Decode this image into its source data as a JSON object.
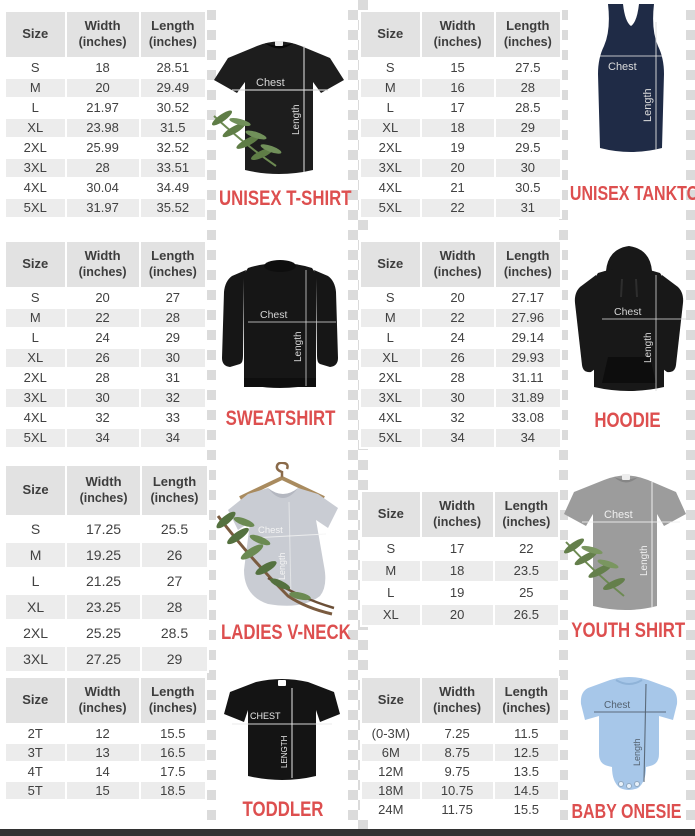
{
  "accent_color": "#dd4f4f",
  "columns": {
    "size": "Size",
    "width": "Width",
    "length": "Length",
    "unit": "(inches)"
  },
  "sections": [
    {
      "label": "UNISEX T-SHIRT",
      "chest_label": "Chest",
      "length_label": "Length",
      "garment_color": "#1d1d1d",
      "annotation_color": "#d8d8d8",
      "rows": [
        [
          "S",
          "18",
          "28.51"
        ],
        [
          "M",
          "20",
          "29.49"
        ],
        [
          "L",
          "21.97",
          "30.52"
        ],
        [
          "XL",
          "23.98",
          "31.5"
        ],
        [
          "2XL",
          "25.99",
          "32.52"
        ],
        [
          "3XL",
          "28",
          "33.51"
        ],
        [
          "4XL",
          "30.04",
          "34.49"
        ],
        [
          "5XL",
          "31.97",
          "35.52"
        ]
      ]
    },
    {
      "label": "UNISEX TANKTOP",
      "chest_label": "Chest",
      "length_label": "Length",
      "garment_color": "#1f2b46",
      "annotation_color": "#dcdcdc",
      "rows": [
        [
          "S",
          "15",
          "27.5"
        ],
        [
          "M",
          "16",
          "28"
        ],
        [
          "L",
          "17",
          "28.5"
        ],
        [
          "XL",
          "18",
          "29"
        ],
        [
          "2XL",
          "19",
          "29.5"
        ],
        [
          "3XL",
          "20",
          "30"
        ],
        [
          "4XL",
          "21",
          "30.5"
        ],
        [
          "5XL",
          "22",
          "31"
        ]
      ]
    },
    {
      "label": "SWEATSHIRT",
      "chest_label": "Chest",
      "length_label": "Length",
      "garment_color": "#161616",
      "annotation_color": "#d5d5d5",
      "rows": [
        [
          "S",
          "20",
          "27"
        ],
        [
          "M",
          "22",
          "28"
        ],
        [
          "L",
          "24",
          "29"
        ],
        [
          "XL",
          "26",
          "30"
        ],
        [
          "2XL",
          "28",
          "31"
        ],
        [
          "3XL",
          "30",
          "32"
        ],
        [
          "4XL",
          "32",
          "33"
        ],
        [
          "5XL",
          "34",
          "34"
        ]
      ]
    },
    {
      "label": "HOODIE",
      "chest_label": "Chest",
      "length_label": "Length",
      "garment_color": "#181818",
      "annotation_color": "#d5d5d5",
      "rows": [
        [
          "S",
          "20",
          "27.17"
        ],
        [
          "M",
          "22",
          "27.96"
        ],
        [
          "L",
          "24",
          "29.14"
        ],
        [
          "XL",
          "26",
          "29.93"
        ],
        [
          "2XL",
          "28",
          "31.11"
        ],
        [
          "3XL",
          "30",
          "31.89"
        ],
        [
          "4XL",
          "32",
          "33.08"
        ],
        [
          "5XL",
          "34",
          "34"
        ]
      ]
    },
    {
      "label": "LADIES V-NECK",
      "chest_label": "Chest",
      "length_label": "Length",
      "garment_color": "#c9ccd3",
      "annotation_color": "#f4f4f4",
      "rows": [
        [
          "S",
          "17.25",
          "25.5"
        ],
        [
          "M",
          "19.25",
          "26"
        ],
        [
          "L",
          "21.25",
          "27"
        ],
        [
          "XL",
          "23.25",
          "28"
        ],
        [
          "2XL",
          "25.25",
          "28.5"
        ],
        [
          "3XL",
          "27.25",
          "29"
        ]
      ]
    },
    {
      "label": "YOUTH SHIRT",
      "chest_label": "Chest",
      "length_label": "Length",
      "garment_color": "#9c9c9c",
      "annotation_color": "#efefef",
      "rows": [
        [
          "S",
          "17",
          "22"
        ],
        [
          "M",
          "18",
          "23.5"
        ],
        [
          "L",
          "19",
          "25"
        ],
        [
          "XL",
          "20",
          "26.5"
        ]
      ]
    },
    {
      "label": "TODDLER",
      "chest_label": "CHEST",
      "length_label": "LENGTH",
      "garment_color": "#141414",
      "annotation_color": "#e9e9e9",
      "rows": [
        [
          "2T",
          "12",
          "15.5"
        ],
        [
          "3T",
          "13",
          "16.5"
        ],
        [
          "4T",
          "14",
          "17.5"
        ],
        [
          "5T",
          "15",
          "18.5"
        ]
      ]
    },
    {
      "label": "BABY ONESIE",
      "chest_label": "Chest",
      "length_label": "Length",
      "garment_color": "#a7c7e9",
      "annotation_color": "#53616f",
      "rows": [
        [
          "(0-3M)",
          "7.25",
          "11.5"
        ],
        [
          "6M",
          "8.75",
          "12.5"
        ],
        [
          "12M",
          "9.75",
          "13.5"
        ],
        [
          "18M",
          "10.75",
          "14.5"
        ],
        [
          "24M",
          "11.75",
          "15.5"
        ]
      ]
    }
  ]
}
